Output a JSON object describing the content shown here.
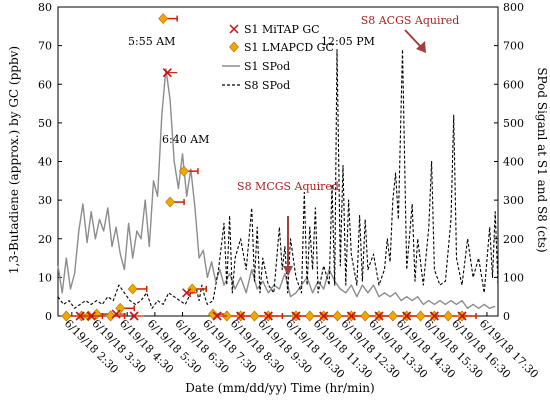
{
  "chart_data": {
    "type": "line",
    "xlabel": "Date (mm/dd/yy) Time (hr/min)",
    "ylabel_left": "1,3-Butadiene (approx.) by GC (ppbv)",
    "ylabel_right": "SPod Siganl at S1 and S8 (cts)",
    "x_tick_labels": [
      "6/19/18 2:30",
      "6/19/18 3:30",
      "6/19/18 4:30",
      "6/19/18 5:30",
      "6/19/18 6:30",
      "6/19/18 7:30",
      "6/19/18 8:30",
      "6/19/18 9:30",
      "6/19/18 10:30",
      "6/19/18 11:30",
      "6/19/18 12:30",
      "6/19/18 13:30",
      "6/19/18 14:30",
      "6/19/18 15:30",
      "6/19/18 16:30",
      "6/19/18 17:30"
    ],
    "x_tick_hours": [
      2.5,
      3.5,
      4.5,
      5.5,
      6.5,
      7.5,
      8.5,
      9.5,
      10.5,
      11.5,
      12.5,
      13.5,
      14.5,
      15.5,
      16.5,
      17.5
    ],
    "xlim_hours": [
      2.0,
      17.9
    ],
    "ylim_left": [
      0,
      80
    ],
    "ylim_right": [
      0,
      800
    ],
    "yticks_left": [
      0,
      10,
      20,
      30,
      40,
      50,
      60,
      70,
      80
    ],
    "yticks_right": [
      0,
      100,
      200,
      300,
      400,
      500,
      600,
      700,
      800
    ],
    "legend": {
      "position": "top-right",
      "entries": [
        {
          "label": "S1 MiTAP GC",
          "marker": "x",
          "color": "#cc1111"
        },
        {
          "label": "S1 LMAPCD GC",
          "marker": "diamond",
          "color": "#f0a800"
        },
        {
          "label": "S1 SPod",
          "line": "solid",
          "color": "#8c8c8c"
        },
        {
          "label": "S8 SPod",
          "line": "dashed",
          "color": "#000000"
        }
      ]
    },
    "annotations": [
      {
        "text": "5:55 AM",
        "color": "#000000"
      },
      {
        "text": "6:40 AM",
        "color": "#000000"
      },
      {
        "text": "12:05 PM",
        "color": "#000000"
      },
      {
        "text": "S8 MCGS Aquired",
        "color": "#b02020"
      },
      {
        "text": "S8 ACGS Aquired",
        "color": "#b02020"
      }
    ],
    "series": [
      {
        "name": "S1 MiTAP GC",
        "axis": "left",
        "x": [
          2.8,
          3.2,
          4.1,
          4.75,
          5.95,
          6.65,
          7.75,
          8.6,
          9.6,
          10.6,
          11.6,
          12.6,
          13.6,
          14.6,
          15.6,
          16.6
        ],
        "y": [
          0,
          0,
          0.5,
          0,
          63,
          6,
          0,
          0,
          0,
          0,
          0,
          0,
          0,
          0,
          0,
          0
        ]
      },
      {
        "name": "S1 LMAPCD GC",
        "axis": "left",
        "x": [
          2.3,
          2.85,
          3.1,
          3.4,
          3.9,
          4.25,
          4.7,
          5.8,
          6.05,
          6.55,
          6.85,
          7.6,
          8.1,
          8.6,
          9.1,
          9.6,
          10.6,
          11.1,
          11.6,
          12.1,
          12.6,
          13.1,
          13.6,
          14.1,
          14.6,
          15.1,
          15.6,
          16.1,
          16.6
        ],
        "y": [
          0,
          0,
          0,
          0.5,
          0,
          2,
          7,
          77,
          29.5,
          37.5,
          7,
          0.5,
          0,
          0,
          0,
          0,
          0,
          0,
          0,
          0,
          0,
          0,
          0,
          0,
          0,
          0,
          0,
          0,
          0
        ]
      },
      {
        "name": "S1 SPod",
        "axis": "right",
        "x": [
          2.0,
          2.15,
          2.3,
          2.45,
          2.6,
          2.75,
          2.9,
          3.05,
          3.2,
          3.35,
          3.5,
          3.65,
          3.8,
          3.95,
          4.1,
          4.25,
          4.4,
          4.55,
          4.7,
          4.85,
          5.0,
          5.15,
          5.3,
          5.45,
          5.6,
          5.75,
          5.9,
          6.05,
          6.2,
          6.35,
          6.5,
          6.65,
          6.8,
          6.95,
          7.1,
          7.25,
          7.4,
          7.55,
          7.7,
          7.85,
          8.0,
          8.2,
          8.4,
          8.6,
          8.8,
          9.0,
          9.2,
          9.4,
          9.6,
          9.8,
          10.0,
          10.2,
          10.4,
          10.6,
          10.8,
          11.0,
          11.2,
          11.4,
          11.6,
          11.8,
          12.0,
          12.2,
          12.4,
          12.6,
          12.8,
          13.0,
          13.2,
          13.4,
          13.6,
          13.8,
          14.0,
          14.2,
          14.4,
          14.6,
          14.8,
          15.0,
          15.2,
          15.4,
          15.6,
          15.8,
          16.0,
          16.2,
          16.4,
          16.6,
          16.8,
          17.0,
          17.2,
          17.4,
          17.6,
          17.8
        ],
        "y": [
          130,
          60,
          150,
          70,
          110,
          220,
          290,
          190,
          270,
          200,
          250,
          220,
          280,
          180,
          230,
          160,
          120,
          240,
          150,
          220,
          200,
          300,
          180,
          350,
          310,
          520,
          640,
          560,
          400,
          330,
          420,
          310,
          380,
          280,
          150,
          170,
          100,
          140,
          90,
          120,
          80,
          110,
          70,
          100,
          60,
          120,
          70,
          90,
          60,
          80,
          70,
          110,
          50,
          60,
          80,
          100,
          60,
          90,
          70,
          120,
          90,
          70,
          60,
          80,
          50,
          80,
          60,
          80,
          50,
          60,
          50,
          60,
          40,
          50,
          40,
          50,
          30,
          40,
          30,
          40,
          30,
          40,
          30,
          40,
          20,
          30,
          20,
          30,
          20,
          25
        ]
      },
      {
        "name": "S8 SPod",
        "axis": "right",
        "x": [
          2.0,
          2.2,
          2.4,
          2.6,
          2.8,
          3.0,
          3.2,
          3.4,
          3.6,
          3.8,
          4.0,
          4.2,
          4.4,
          4.6,
          4.8,
          5.0,
          5.2,
          5.4,
          5.6,
          5.8,
          6.0,
          6.2,
          6.4,
          6.6,
          6.8,
          7.0,
          7.1,
          7.2,
          7.3,
          7.4,
          7.6,
          7.8,
          8.0,
          8.1,
          8.2,
          8.3,
          8.4,
          8.6,
          8.8,
          9.0,
          9.1,
          9.2,
          9.3,
          9.4,
          9.6,
          9.8,
          10.0,
          10.1,
          10.2,
          10.3,
          10.4,
          10.6,
          10.8,
          10.9,
          11.0,
          11.1,
          11.2,
          11.3,
          11.4,
          11.6,
          11.8,
          11.9,
          12.0,
          12.083,
          12.2,
          12.3,
          12.4,
          12.5,
          12.6,
          12.8,
          12.9,
          13.0,
          13.1,
          13.2,
          13.4,
          13.6,
          13.8,
          13.9,
          14.0,
          14.1,
          14.2,
          14.3,
          14.45,
          14.6,
          14.8,
          14.9,
          15.0,
          15.2,
          15.4,
          15.5,
          15.6,
          15.8,
          16.0,
          16.2,
          16.3,
          16.4,
          16.6,
          16.8,
          17.0,
          17.2,
          17.4,
          17.6,
          17.7,
          17.8,
          17.9
        ],
        "y": [
          50,
          30,
          40,
          20,
          30,
          40,
          30,
          40,
          30,
          50,
          40,
          80,
          60,
          40,
          30,
          40,
          60,
          20,
          40,
          30,
          60,
          50,
          40,
          30,
          60,
          70,
          40,
          80,
          50,
          30,
          40,
          120,
          240,
          80,
          260,
          60,
          150,
          200,
          120,
          280,
          90,
          230,
          60,
          150,
          80,
          60,
          230,
          120,
          180,
          60,
          200,
          100,
          60,
          320,
          80,
          230,
          120,
          280,
          60,
          130,
          80,
          340,
          80,
          690,
          130,
          390,
          80,
          300,
          160,
          80,
          260,
          90,
          250,
          120,
          160,
          80,
          120,
          200,
          140,
          300,
          370,
          250,
          690,
          120,
          290,
          90,
          200,
          80,
          230,
          400,
          120,
          80,
          90,
          250,
          520,
          150,
          80,
          200,
          100,
          150,
          60,
          230,
          100,
          270,
          80
        ]
      }
    ]
  }
}
